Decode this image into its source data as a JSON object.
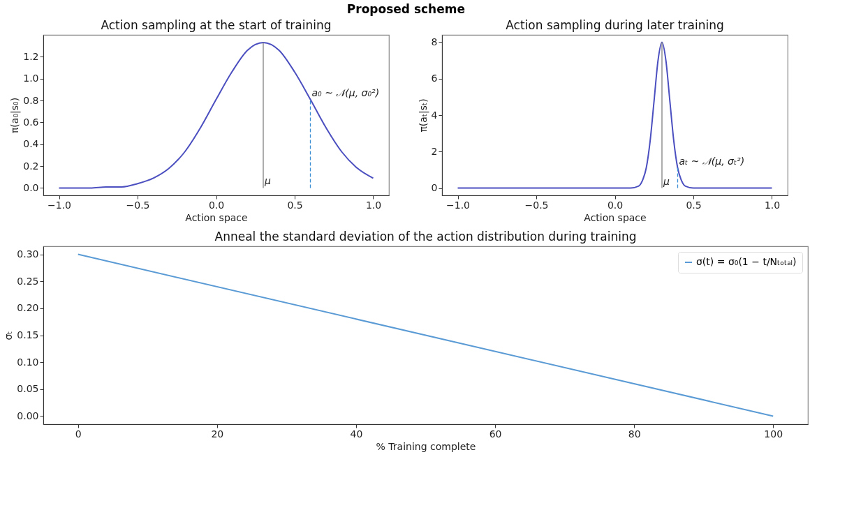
{
  "chart_data": [
    {
      "type": "line",
      "title": "Action sampling at the start of training",
      "xlabel": "Action space",
      "ylabel": "π(a₀|s₀)",
      "xlim": [
        -1.1,
        1.1
      ],
      "xticks": [
        {
          "value": -1,
          "label": "−1.0"
        },
        {
          "value": -0.5,
          "label": "−0.5"
        },
        {
          "value": 0,
          "label": "0.0"
        },
        {
          "value": 0.5,
          "label": "0.5"
        },
        {
          "value": 1,
          "label": "1.0"
        }
      ],
      "ylim": [
        -0.067,
        1.4
      ],
      "yticks": [
        {
          "value": 0,
          "label": "0.0"
        },
        {
          "value": 0.2,
          "label": "0.2"
        },
        {
          "value": 0.4,
          "label": "0.4"
        },
        {
          "value": 0.6,
          "label": "0.6"
        },
        {
          "value": 0.8,
          "label": "0.8"
        },
        {
          "value": 1,
          "label": "1.0"
        },
        {
          "value": 1.2,
          "label": "1.2"
        }
      ],
      "grid": false,
      "marker": "none",
      "legend": false,
      "series": [
        {
          "color": "#4b4fbf",
          "line_style": "solid",
          "x": [
            -1,
            -0.9,
            -0.8,
            -0.7,
            -0.6,
            -0.5,
            -0.4,
            -0.3,
            -0.2,
            -0.1,
            0,
            0.1,
            0.2,
            0.3,
            0.4,
            0.5,
            0.6,
            0.7,
            0.8,
            0.9,
            1
          ],
          "values": [
            0.0,
            0.0,
            0.0,
            0.01,
            0.01,
            0.04,
            0.09,
            0.18,
            0.33,
            0.55,
            0.81,
            1.06,
            1.26,
            1.33,
            1.26,
            1.06,
            0.81,
            0.55,
            0.33,
            0.18,
            0.09
          ]
        },
        {
          "color": "#808080",
          "line_style": "solid",
          "x": [
            0.3,
            0.3
          ],
          "values": [
            0,
            1.33
          ]
        },
        {
          "color": "#3a8fd6",
          "line_style": "dashed",
          "x": [
            0.6,
            0.6
          ],
          "values": [
            0,
            0.81
          ]
        }
      ],
      "annotations": [
        "Proposed scheme",
        {
          "text": "μ",
          "x": 0.3,
          "y": 0
        },
        {
          "text": "a₀ ~ 𝒩(μ, σ₀²)",
          "x": 0.6,
          "y": 0.81
        }
      ]
    },
    {
      "type": "line",
      "title": "Action sampling during later training",
      "xlabel": "Action space",
      "ylabel": "π(aₜ|sₜ)",
      "xlim": [
        -1.1,
        1.1
      ],
      "xticks": [
        {
          "value": -1,
          "label": "−1.0"
        },
        {
          "value": -0.5,
          "label": "−0.5"
        },
        {
          "value": 0,
          "label": "0.0"
        },
        {
          "value": 0.5,
          "label": "0.5"
        },
        {
          "value": 1,
          "label": "1.0"
        }
      ],
      "ylim": [
        -0.4,
        8.4
      ],
      "yticks": [
        0,
        2,
        4,
        6,
        8
      ],
      "grid": false,
      "marker": "none",
      "legend": false,
      "series": [
        {
          "color": "#4b4fbf",
          "line_style": "solid",
          "x": [
            -1,
            -0.5,
            0,
            0.1,
            0.15,
            0.175,
            0.2,
            0.225,
            0.25,
            0.275,
            0.3,
            0.325,
            0.35,
            0.375,
            0.4,
            0.425,
            0.45,
            0.5,
            1
          ],
          "values": [
            0,
            0,
            0,
            0,
            0.1,
            0.4,
            1.1,
            2.6,
            4.8,
            7.0,
            8.0,
            7.0,
            4.8,
            2.6,
            1.1,
            0.4,
            0.1,
            0,
            0
          ]
        },
        {
          "color": "#808080",
          "line_style": "solid",
          "x": [
            0.3,
            0.3
          ],
          "values": [
            0,
            8.0
          ]
        },
        {
          "color": "#3a8fd6",
          "line_style": "dashed",
          "x": [
            0.4,
            0.4
          ],
          "values": [
            0,
            1.1
          ]
        }
      ],
      "annotations": [
        {
          "text": "μ",
          "x": 0.3,
          "y": 0
        },
        {
          "text": "aₜ ~ 𝒩(μ, σₜ²)",
          "x": 0.4,
          "y": 1.1
        }
      ]
    },
    {
      "type": "line",
      "title": "Anneal the standard deviation of the action distribution during training",
      "xlabel": "% Training complete",
      "ylabel": "σₜ",
      "xlim": [
        -5,
        105
      ],
      "xticks": [
        0,
        20,
        40,
        60,
        80,
        100
      ],
      "ylim": [
        -0.015,
        0.315
      ],
      "yticks": [
        {
          "value": 0,
          "label": "0.00"
        },
        {
          "value": 0.05,
          "label": "0.05"
        },
        {
          "value": 0.1,
          "label": "0.10"
        },
        {
          "value": 0.15,
          "label": "0.15"
        },
        {
          "value": 0.2,
          "label": "0.20"
        },
        {
          "value": 0.25,
          "label": "0.25"
        },
        {
          "value": 0.3,
          "label": "0.30"
        }
      ],
      "grid": false,
      "marker": "none",
      "legend": "top right",
      "series": [
        {
          "name": "σ(t) = σ₀(1 − t/Nₜₒₜₐₗ)",
          "color": "#5b9bd5",
          "line_style": "solid",
          "x": [
            0,
            100
          ],
          "values": [
            0.3,
            0
          ]
        }
      ]
    }
  ]
}
